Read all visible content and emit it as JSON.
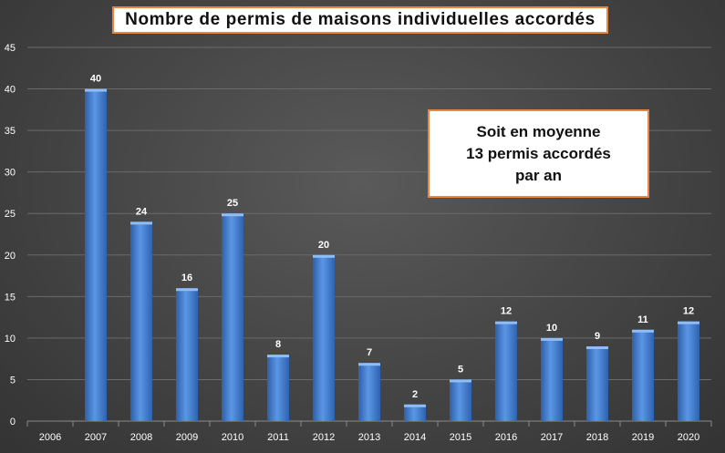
{
  "chart_data": {
    "type": "bar",
    "title": "Nombre de permis de maisons individuelles accordés",
    "categories": [
      "2006",
      "2007",
      "2008",
      "2009",
      "2010",
      "2011",
      "2012",
      "2013",
      "2014",
      "2015",
      "2016",
      "2017",
      "2018",
      "2019",
      "2020"
    ],
    "values": [
      null,
      40,
      24,
      16,
      25,
      8,
      20,
      7,
      2,
      5,
      12,
      10,
      9,
      11,
      12
    ],
    "ylim": [
      0,
      45
    ],
    "yticks": [
      0,
      5,
      10,
      15,
      20,
      25,
      30,
      35,
      40,
      45
    ],
    "xlabel": "",
    "ylabel": "",
    "grid": true,
    "data_labels": true,
    "annotation": {
      "lines": [
        "Soit en moyenne",
        "13 permis accordés",
        "par an"
      ]
    },
    "colors": {
      "bar": "#4a86d8",
      "border": "#e8873a",
      "text": "#ffffff"
    }
  }
}
